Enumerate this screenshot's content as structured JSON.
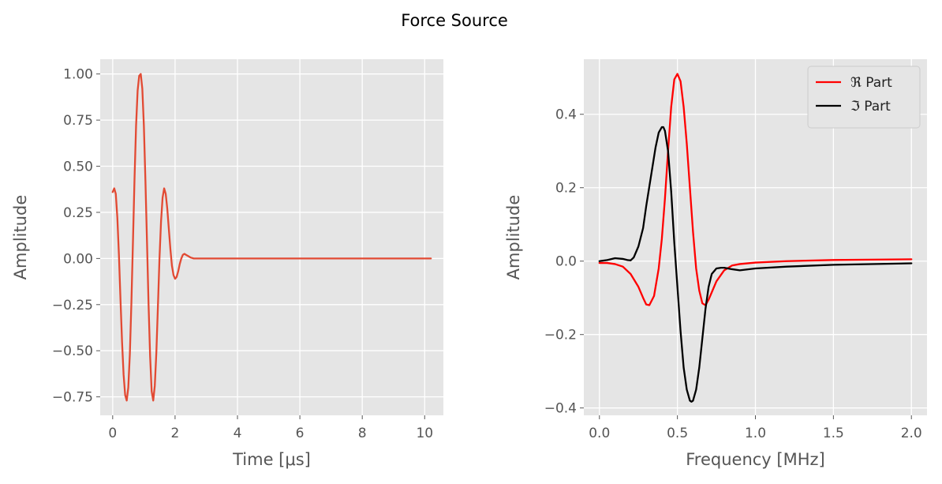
{
  "figure": {
    "suptitle": "Force Source"
  },
  "chart_data": [
    {
      "type": "line",
      "title": "",
      "xlabel": "Time [μs]",
      "ylabel": "Amplitude",
      "xlim": [
        -0.4,
        10.6
      ],
      "ylim": [
        -0.85,
        1.08
      ],
      "xticks": [
        0,
        2,
        4,
        6,
        8,
        10
      ],
      "xtick_labels": [
        "0",
        "2",
        "4",
        "6",
        "8",
        "10"
      ],
      "yticks": [
        -0.75,
        -0.5,
        -0.25,
        0.0,
        0.25,
        0.5,
        0.75,
        1.0
      ],
      "ytick_labels": [
        "−0.75",
        "−0.50",
        "−0.25",
        "0.00",
        "0.25",
        "0.50",
        "0.75",
        "1.00"
      ],
      "grid": true,
      "legend": null,
      "series": [
        {
          "color": "#e24a33",
          "x": [
            0,
            0.05,
            0.1,
            0.15,
            0.2,
            0.25,
            0.3,
            0.35,
            0.4,
            0.45,
            0.5,
            0.55,
            0.6,
            0.65,
            0.7,
            0.75,
            0.8,
            0.85,
            0.9,
            0.95,
            1.0,
            1.05,
            1.1,
            1.15,
            1.2,
            1.25,
            1.3,
            1.35,
            1.4,
            1.45,
            1.5,
            1.55,
            1.6,
            1.65,
            1.7,
            1.75,
            1.8,
            1.85,
            1.9,
            1.95,
            2.0,
            2.05,
            2.1,
            2.15,
            2.2,
            2.25,
            2.3,
            2.35,
            2.4,
            2.45,
            2.5,
            2.6,
            2.7,
            2.8,
            2.9,
            3.0,
            3.1,
            3.2,
            3.3,
            3.4,
            3.5,
            3.7,
            4.0,
            5.0,
            6.0,
            8.0,
            10.2
          ],
          "y": [
            0.36,
            0.38,
            0.35,
            0.22,
            0.02,
            -0.22,
            -0.45,
            -0.63,
            -0.74,
            -0.77,
            -0.7,
            -0.52,
            -0.24,
            0.09,
            0.43,
            0.72,
            0.91,
            0.99,
            1.0,
            0.92,
            0.72,
            0.42,
            0.09,
            -0.25,
            -0.53,
            -0.72,
            -0.77,
            -0.69,
            -0.51,
            -0.26,
            0.0,
            0.2,
            0.33,
            0.38,
            0.35,
            0.27,
            0.16,
            0.05,
            -0.04,
            -0.09,
            -0.11,
            -0.1,
            -0.07,
            -0.03,
            0.0,
            0.02,
            0.025,
            0.02,
            0.015,
            0.01,
            0.005,
            0.0,
            0.0,
            0.0,
            0.0,
            0.0,
            0.0,
            0.0,
            0.0,
            0.0,
            0.0,
            0.0,
            0.0,
            0.0,
            0.0,
            0.0,
            0.0
          ]
        }
      ]
    },
    {
      "type": "line",
      "title": "",
      "xlabel": "Frequency [MHz]",
      "ylabel": "Amplitude",
      "xlim": [
        -0.1,
        2.1
      ],
      "ylim": [
        -0.42,
        0.55
      ],
      "xticks": [
        0.0,
        0.5,
        1.0,
        1.5,
        2.0
      ],
      "xtick_labels": [
        "0.0",
        "0.5",
        "1.0",
        "1.5",
        "2.0"
      ],
      "yticks": [
        -0.4,
        -0.2,
        0.0,
        0.2,
        0.4
      ],
      "ytick_labels": [
        "−0.4",
        "−0.2",
        "0.0",
        "0.2",
        "0.4"
      ],
      "grid": true,
      "legend": "top-right",
      "series": [
        {
          "name": "ℜ Part",
          "color": "#ff0000",
          "x": [
            0.0,
            0.05,
            0.1,
            0.15,
            0.2,
            0.25,
            0.28,
            0.3,
            0.32,
            0.35,
            0.38,
            0.4,
            0.42,
            0.44,
            0.46,
            0.48,
            0.5,
            0.52,
            0.54,
            0.56,
            0.58,
            0.6,
            0.62,
            0.64,
            0.66,
            0.68,
            0.7,
            0.72,
            0.75,
            0.8,
            0.85,
            0.9,
            1.0,
            1.2,
            1.5,
            2.0
          ],
          "y": [
            -0.005,
            -0.005,
            -0.008,
            -0.015,
            -0.035,
            -0.07,
            -0.1,
            -0.118,
            -0.12,
            -0.095,
            -0.02,
            0.06,
            0.17,
            0.3,
            0.42,
            0.495,
            0.51,
            0.49,
            0.42,
            0.32,
            0.2,
            0.08,
            -0.02,
            -0.08,
            -0.115,
            -0.12,
            -0.105,
            -0.085,
            -0.055,
            -0.025,
            -0.012,
            -0.008,
            -0.004,
            0.0,
            0.003,
            0.005
          ]
        },
        {
          "name": "ℑ Part",
          "color": "#000000",
          "x": [
            0.0,
            0.05,
            0.1,
            0.15,
            0.18,
            0.2,
            0.22,
            0.25,
            0.28,
            0.3,
            0.33,
            0.36,
            0.38,
            0.4,
            0.41,
            0.42,
            0.44,
            0.46,
            0.48,
            0.5,
            0.52,
            0.54,
            0.56,
            0.58,
            0.59,
            0.6,
            0.62,
            0.64,
            0.66,
            0.68,
            0.7,
            0.72,
            0.75,
            0.78,
            0.8,
            0.85,
            0.9,
            1.0,
            1.2,
            1.5,
            2.0
          ],
          "y": [
            0.0,
            0.003,
            0.008,
            0.006,
            0.003,
            0.002,
            0.01,
            0.04,
            0.09,
            0.15,
            0.23,
            0.31,
            0.35,
            0.365,
            0.365,
            0.355,
            0.3,
            0.19,
            0.05,
            -0.07,
            -0.19,
            -0.29,
            -0.35,
            -0.38,
            -0.383,
            -0.38,
            -0.35,
            -0.29,
            -0.21,
            -0.13,
            -0.07,
            -0.035,
            -0.02,
            -0.018,
            -0.018,
            -0.022,
            -0.025,
            -0.02,
            -0.015,
            -0.01,
            -0.006
          ]
        }
      ]
    }
  ]
}
